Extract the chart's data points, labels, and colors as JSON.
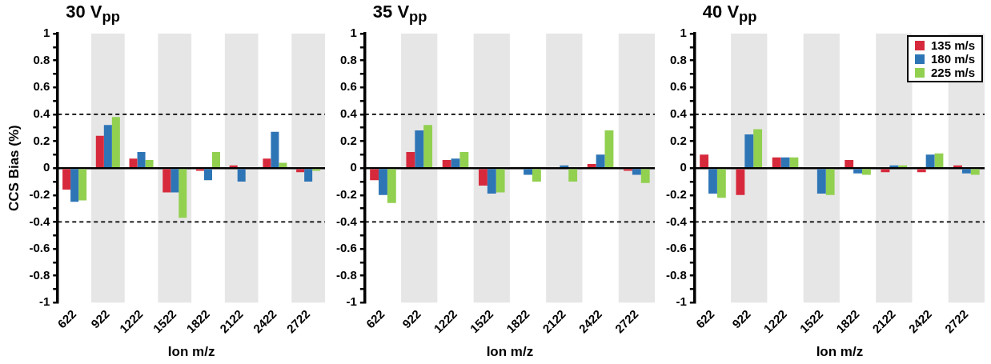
{
  "chart_data": [
    {
      "type": "bar",
      "title": "30 V$_{pp}$",
      "xlabel": "Ion m/z",
      "ylabel": "CCS Bias (%)",
      "categories": [
        "622",
        "922",
        "1222",
        "1522",
        "1822",
        "2122",
        "2422",
        "2722"
      ],
      "series": [
        {
          "color": "#d62a3c",
          "values": [
            -0.16,
            0.24,
            0.07,
            -0.18,
            -0.02,
            0.02,
            0.07,
            -0.03
          ]
        },
        {
          "color": "#2e75b6",
          "values": [
            -0.25,
            0.32,
            0.12,
            -0.18,
            -0.09,
            -0.1,
            0.27,
            -0.1
          ]
        },
        {
          "color": "#92d050",
          "values": [
            -0.24,
            0.38,
            0.06,
            -0.37,
            0.12,
            0,
            0.04,
            -0.02
          ]
        }
      ],
      "ylim": [
        -1,
        1
      ],
      "yticks": [
        -1,
        {
          "value": -0.9,
          "label": null
        },
        -0.8,
        {
          "value": -0.7,
          "label": null
        },
        -0.6,
        {
          "value": -0.5,
          "label": null
        },
        -0.4,
        {
          "value": -0.3,
          "label": null
        },
        -0.2,
        {
          "value": -0.1,
          "label": null
        },
        0,
        {
          "value": 0.1,
          "label": null
        },
        0.2,
        {
          "value": 0.3,
          "label": null
        },
        0.4,
        {
          "value": 0.5,
          "label": null
        },
        0.6,
        {
          "value": 0.7,
          "label": null
        },
        0.8,
        {
          "value": 0.9,
          "label": null
        },
        1
      ],
      "ref_lines": [
        {
          "axis": "y",
          "value": 0.4,
          "line_style": "dashed",
          "color": "#000000"
        },
        {
          "axis": "y",
          "value": -0.4,
          "line_style": "dashed",
          "color": "#000000"
        }
      ],
      "bands": [
        {
          "axis": "x",
          "from": "922",
          "to": "922",
          "color": "#e6e6e6"
        },
        {
          "axis": "x",
          "from": "1522",
          "to": "1522",
          "color": "#e6e6e6"
        },
        {
          "axis": "x",
          "from": "2122",
          "to": "2122",
          "color": "#e6e6e6"
        },
        {
          "axis": "x",
          "from": "2722",
          "to": "2722",
          "color": "#e6e6e6"
        }
      ],
      "grid": false,
      "legend": false
    },
    {
      "type": "bar",
      "title": "35 V$_{pp}$",
      "xlabel": "Ion m/z",
      "categories": [
        "622",
        "922",
        "1222",
        "1522",
        "1822",
        "2122",
        "2422",
        "2722"
      ],
      "series": [
        {
          "color": "#d62a3c",
          "values": [
            -0.09,
            0.12,
            0.06,
            -0.13,
            0,
            0,
            0.03,
            -0.02
          ]
        },
        {
          "color": "#2e75b6",
          "values": [
            -0.2,
            0.28,
            0.07,
            -0.19,
            -0.05,
            0.02,
            0.1,
            -0.05
          ]
        },
        {
          "color": "#92d050",
          "values": [
            -0.26,
            0.32,
            0.12,
            -0.18,
            -0.1,
            -0.1,
            0.28,
            -0.11
          ]
        }
      ],
      "ylim": [
        -1,
        1
      ],
      "yticks": [
        -1,
        {
          "value": -0.9,
          "label": null
        },
        -0.8,
        {
          "value": -0.7,
          "label": null
        },
        -0.6,
        {
          "value": -0.5,
          "label": null
        },
        -0.4,
        {
          "value": -0.3,
          "label": null
        },
        -0.2,
        {
          "value": -0.1,
          "label": null
        },
        0,
        {
          "value": 0.1,
          "label": null
        },
        0.2,
        {
          "value": 0.3,
          "label": null
        },
        0.4,
        {
          "value": 0.5,
          "label": null
        },
        0.6,
        {
          "value": 0.7,
          "label": null
        },
        0.8,
        {
          "value": 0.9,
          "label": null
        },
        1
      ],
      "ref_lines": [
        {
          "axis": "y",
          "value": 0.4,
          "line_style": "dashed",
          "color": "#000000"
        },
        {
          "axis": "y",
          "value": -0.4,
          "line_style": "dashed",
          "color": "#000000"
        }
      ],
      "bands": [
        {
          "axis": "x",
          "from": "922",
          "to": "922",
          "color": "#e6e6e6"
        },
        {
          "axis": "x",
          "from": "1522",
          "to": "1522",
          "color": "#e6e6e6"
        },
        {
          "axis": "x",
          "from": "2122",
          "to": "2122",
          "color": "#e6e6e6"
        },
        {
          "axis": "x",
          "from": "2722",
          "to": "2722",
          "color": "#e6e6e6"
        }
      ],
      "grid": false,
      "legend": false
    },
    {
      "type": "bar",
      "title": "40 V$_{pp}$",
      "xlabel": "Ion m/z",
      "categories": [
        "622",
        "922",
        "1222",
        "1522",
        "1822",
        "2122",
        "2422",
        "2722"
      ],
      "series": [
        {
          "name": "135 m/s",
          "color": "#d62a3c",
          "values": [
            0.1,
            -0.2,
            0.08,
            0,
            0.06,
            -0.03,
            -0.03,
            0.02
          ]
        },
        {
          "name": "180 m/s",
          "color": "#2e75b6",
          "values": [
            -0.19,
            0.25,
            0.08,
            -0.19,
            -0.04,
            0.02,
            0.1,
            -0.04
          ]
        },
        {
          "name": "225 m/s",
          "color": "#92d050",
          "values": [
            -0.22,
            0.29,
            0.08,
            -0.2,
            -0.05,
            0.02,
            0.11,
            -0.05
          ]
        }
      ],
      "ylim": [
        -1,
        1
      ],
      "yticks": [
        -1,
        {
          "value": -0.9,
          "label": null
        },
        -0.8,
        {
          "value": -0.7,
          "label": null
        },
        -0.6,
        {
          "value": -0.5,
          "label": null
        },
        -0.4,
        {
          "value": -0.3,
          "label": null
        },
        -0.2,
        {
          "value": -0.1,
          "label": null
        },
        0,
        {
          "value": 0.1,
          "label": null
        },
        0.2,
        {
          "value": 0.3,
          "label": null
        },
        0.4,
        {
          "value": 0.5,
          "label": null
        },
        0.6,
        {
          "value": 0.7,
          "label": null
        },
        0.8,
        {
          "value": 0.9,
          "label": null
        },
        1
      ],
      "ref_lines": [
        {
          "axis": "y",
          "value": 0.4,
          "line_style": "dashed",
          "color": "#000000"
        },
        {
          "axis": "y",
          "value": -0.4,
          "line_style": "dashed",
          "color": "#000000"
        }
      ],
      "bands": [
        {
          "axis": "x",
          "from": "922",
          "to": "922",
          "color": "#e6e6e6"
        },
        {
          "axis": "x",
          "from": "1522",
          "to": "1522",
          "color": "#e6e6e6"
        },
        {
          "axis": "x",
          "from": "2122",
          "to": "2122",
          "color": "#e6e6e6"
        },
        {
          "axis": "x",
          "from": "2722",
          "to": "2722",
          "color": "#e6e6e6"
        }
      ],
      "grid": false,
      "legend": "top right"
    }
  ]
}
